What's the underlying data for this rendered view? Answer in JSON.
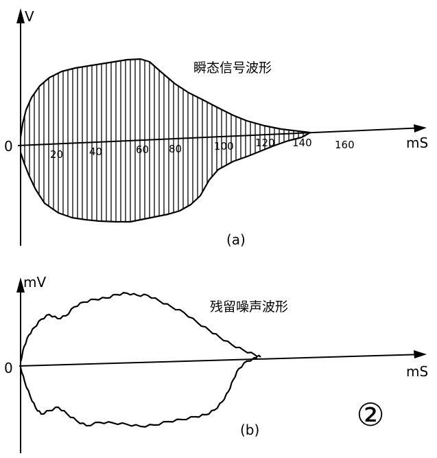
{
  "panel_a": {
    "y_unit": "V",
    "origin": "0",
    "x_unit": "mS",
    "x_ticks": [
      "20",
      "40",
      "60",
      "80",
      "100",
      "120",
      "140",
      "160"
    ],
    "title": "瞬态信号波形",
    "caption": "(a)"
  },
  "panel_b": {
    "y_unit": "mV",
    "origin": "0",
    "x_unit": "mS",
    "title": "残留噪声波形",
    "caption": "(b)"
  },
  "figure_number": "②"
}
